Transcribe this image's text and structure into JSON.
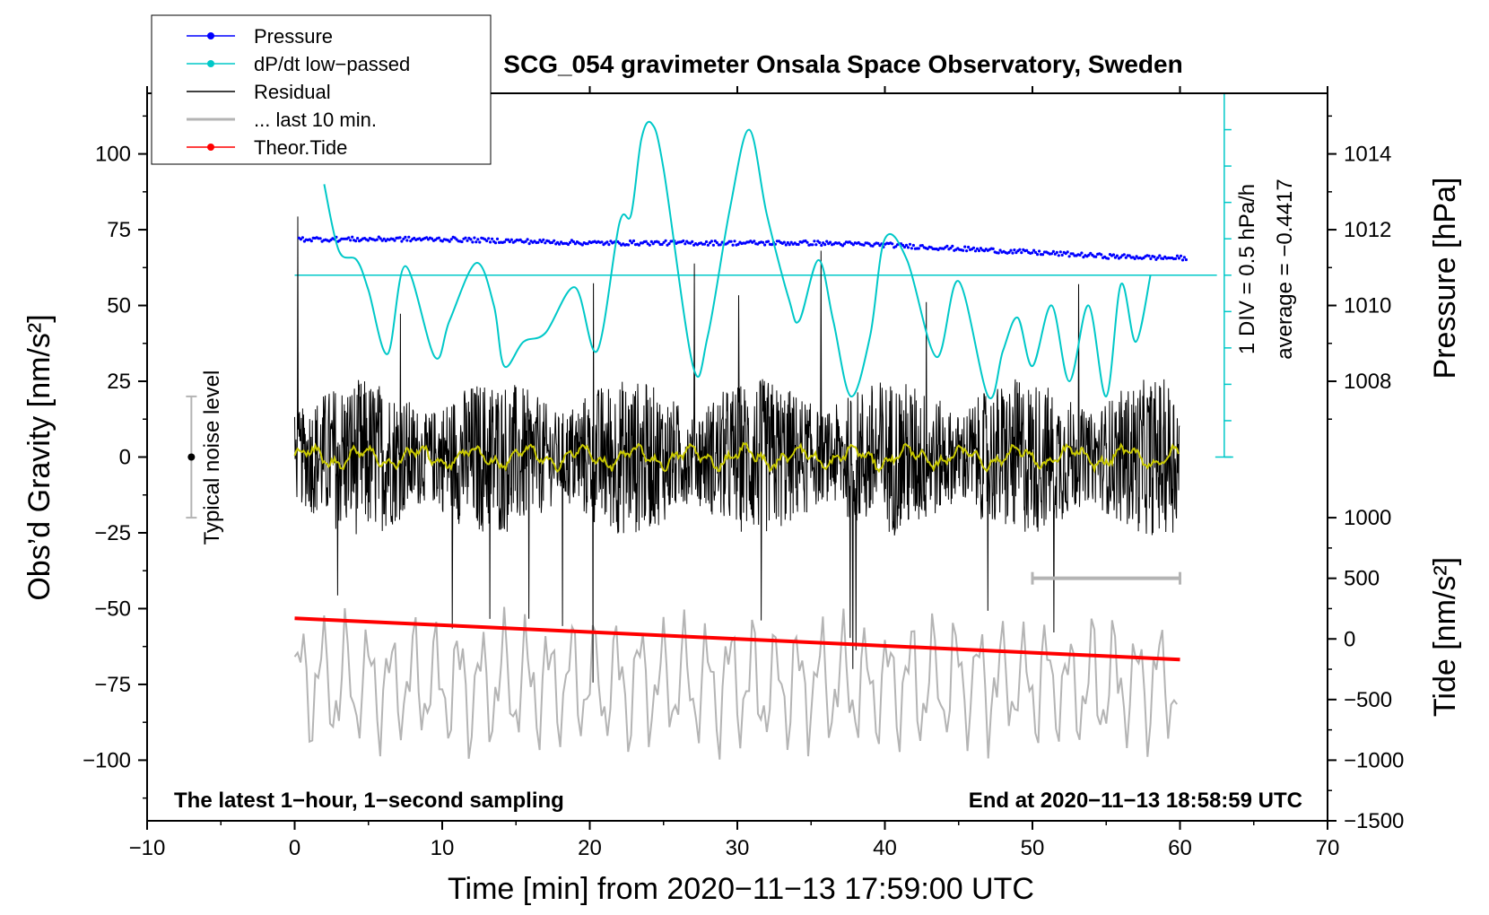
{
  "chart_data": {
    "type": "line",
    "title": "SCG_054 gravimeter Onsala Space Observatory, Sweden",
    "xlabel": "Time [min] from 2020−11−13 17:59:00 UTC",
    "ylabel_left": "Obs’d Gravity [nm/s²]",
    "ylabel_right_top": "Pressure [hPa]",
    "ylabel_right_bottom": "Tide [nm/s²]",
    "xlim": [
      -10,
      70
    ],
    "ylim": [
      -120,
      120
    ],
    "x_ticks": [
      -10,
      0,
      10,
      20,
      30,
      40,
      50,
      60,
      70
    ],
    "x_tick_labels": [
      "−10",
      "0",
      "10",
      "20",
      "30",
      "40",
      "50",
      "60",
      "70"
    ],
    "y_ticks": [
      -100,
      -75,
      -50,
      -25,
      0,
      25,
      50,
      75,
      100
    ],
    "y_tick_labels": [
      "−100",
      "−75",
      "−50",
      "−25",
      "0",
      "25",
      "50",
      "75",
      "100"
    ],
    "pressure_ticks": [
      1008,
      1010,
      1012,
      1014
    ],
    "pressure_tick_labels": [
      "1008",
      "1010",
      "1012",
      "1014"
    ],
    "tide_ticks": [
      -1500,
      -1000,
      -500,
      0,
      500,
      1000
    ],
    "tide_tick_labels": [
      "−1500",
      "−1000",
      "−500",
      "0",
      "500",
      "1000"
    ],
    "legend": [
      {
        "label": "Pressure",
        "color": "#0000ff",
        "marker": true
      },
      {
        "label": "dP/dt low−passed",
        "color": "#00c8c8",
        "marker": true
      },
      {
        "label": "Residual",
        "color": "#000000",
        "marker": false
      },
      {
        "label": "... last 10 min.",
        "color": "#b4b4b4",
        "marker": false
      },
      {
        "label": "Theor.Tide",
        "color": "#ff0000",
        "marker": true
      }
    ],
    "series": [
      {
        "name": "Pressure",
        "axis": "pressure",
        "x": [
          0,
          10,
          20,
          30,
          35,
          40,
          45,
          50,
          55,
          60
        ],
        "values": [
          1011.75,
          1011.75,
          1011.65,
          1011.65,
          1011.65,
          1011.6,
          1011.5,
          1011.4,
          1011.3,
          1011.25
        ]
      },
      {
        "name": "dP/dt low-passed",
        "axis": "gravity_display",
        "x": [
          2.0,
          3.0,
          4.2,
          5.0,
          6.3,
          7.5,
          9.5,
          10.5,
          12.3,
          13.5,
          14.2,
          15.5,
          17.0,
          19.0,
          20.5,
          22.0,
          22.8,
          23.5,
          24.2,
          25.0,
          27.0,
          28.0,
          29.5,
          30.8,
          32.0,
          33.5,
          34.2,
          35.5,
          36.5,
          37.7,
          39.0,
          40.0,
          41.5,
          43.5,
          45.0,
          47.0,
          48.0,
          49.0,
          50.0,
          51.3,
          52.5,
          53.8,
          55.0,
          56.0,
          57.0,
          58.0
        ],
        "values": [
          90,
          68,
          65,
          55,
          34,
          63,
          33,
          45,
          64,
          50,
          30,
          38,
          41,
          56,
          35,
          77,
          80,
          105,
          110,
          95,
          30,
          40,
          82,
          108,
          80,
          52,
          45,
          65,
          45,
          20,
          40,
          72,
          65,
          33,
          58,
          20,
          35,
          46,
          30,
          50,
          25,
          50,
          20,
          57,
          38,
          60
        ]
      },
      {
        "name": "Residual",
        "axis": "gravity",
        "x_range": [
          0,
          60
        ],
        "amplitude_typical": 20,
        "extremes": [
          85,
          -60
        ]
      },
      {
        "name": "... last 10 min.",
        "axis": "gravity",
        "x_range": [
          0,
          60
        ],
        "center": -75,
        "amplitude": 25
      },
      {
        "name": "Theor.Tide",
        "axis": "tide",
        "x": [
          0,
          60
        ],
        "values": [
          170,
          -170
        ]
      }
    ],
    "pressure_scale_label": "1 DIV = 0.5 hPa/h",
    "pressure_average_label": "average = −0.4417",
    "noise_label": "Typical noise level",
    "noise_bar": {
      "center": 0,
      "low": -20,
      "high": 20,
      "x": -7
    },
    "ten_min_bar": {
      "x_start": 50,
      "x_end": 60,
      "y": -40
    },
    "footer_left": "The latest 1−hour, 1−second sampling",
    "footer_right": "End at 2020−11−13 18:58:59 UTC"
  }
}
